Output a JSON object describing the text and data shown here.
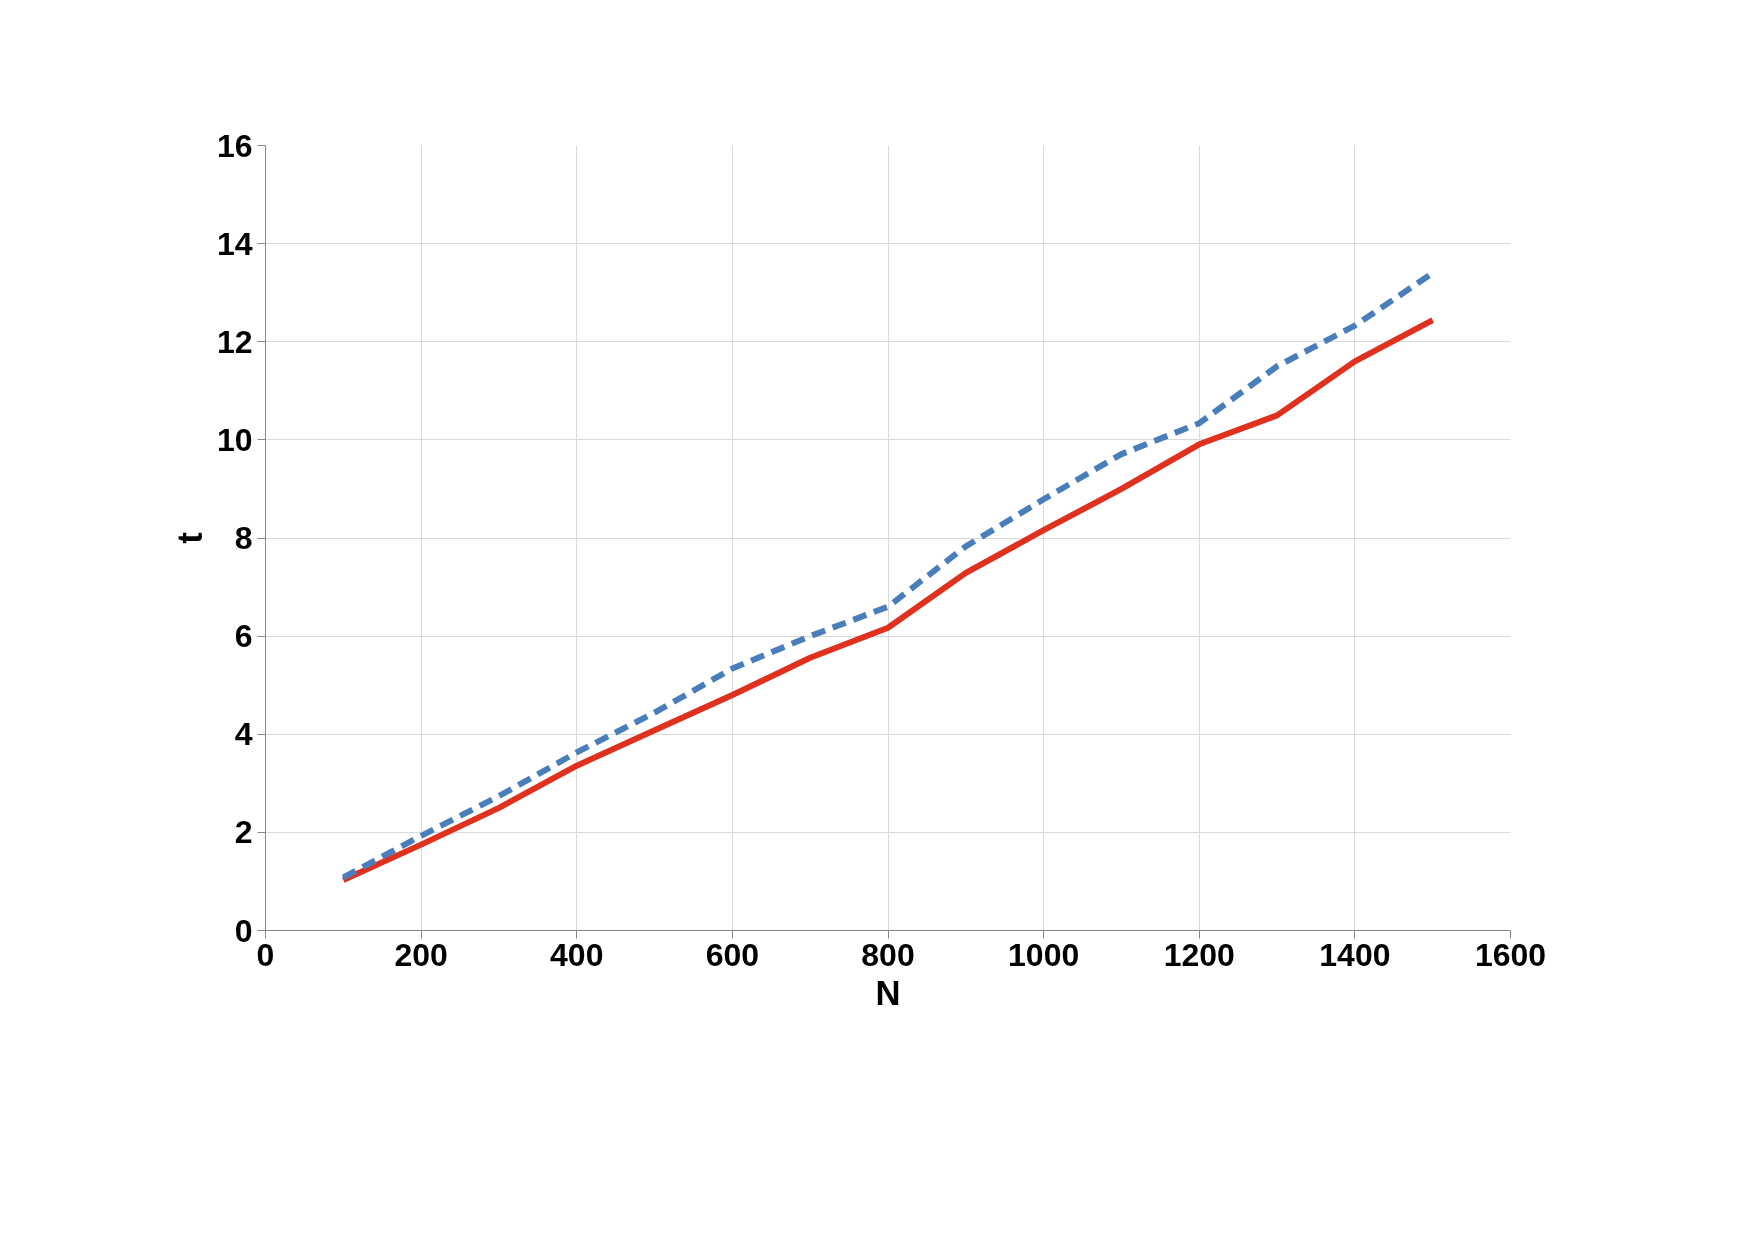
{
  "chart_data": {
    "type": "line",
    "xlabel": "N",
    "ylabel": "t",
    "x": [
      100,
      200,
      300,
      400,
      500,
      600,
      700,
      800,
      900,
      1000,
      1100,
      1200,
      1300,
      1400,
      1500
    ],
    "series": [
      {
        "color": "#e0301e",
        "line_style": "solid",
        "values": [
          1.03,
          1.75,
          2.5,
          3.36,
          4.08,
          4.8,
          5.56,
          6.17,
          7.29,
          8.16,
          9.0,
          9.91,
          10.5,
          11.6,
          12.44
        ]
      },
      {
        "color": "#4a7ebb",
        "line_style": "dashed",
        "values": [
          1.08,
          1.93,
          2.74,
          3.63,
          4.44,
          5.34,
          6.0,
          6.6,
          7.83,
          8.79,
          9.71,
          10.34,
          11.5,
          12.33,
          13.4
        ]
      }
    ],
    "xlim": [
      0,
      1600
    ],
    "xticks": [
      0,
      200,
      400,
      600,
      800,
      1000,
      1200,
      1400,
      1600
    ],
    "ylim": [
      0,
      16
    ],
    "yticks": [
      0,
      2,
      4,
      6,
      8,
      10,
      12,
      14,
      16
    ],
    "grid": true,
    "marker": "none"
  }
}
